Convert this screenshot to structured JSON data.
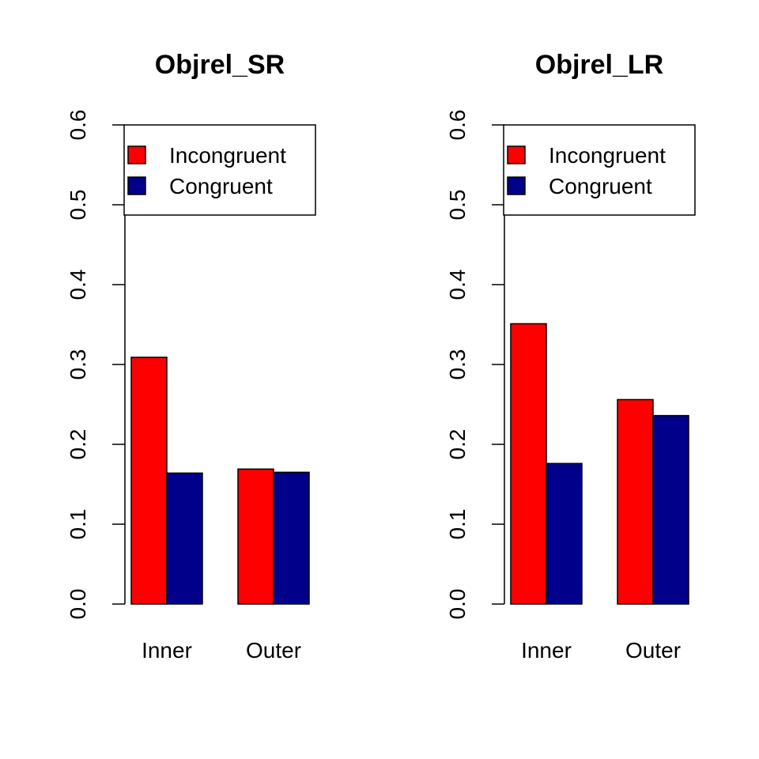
{
  "chart_data": [
    {
      "type": "bar",
      "title": "Objrel_SR",
      "categories": [
        "Inner",
        "Outer"
      ],
      "series": [
        {
          "name": "Incongruent",
          "color": "#ff0000",
          "values": [
            0.309,
            0.169
          ]
        },
        {
          "name": "Congruent",
          "color": "#00008b",
          "values": [
            0.164,
            0.165
          ]
        }
      ],
      "ylim": [
        0,
        0.6
      ],
      "yticks": [
        "0.0",
        "0.1",
        "0.2",
        "0.3",
        "0.4",
        "0.5",
        "0.6"
      ],
      "legend": "top-right",
      "grid": false
    },
    {
      "type": "bar",
      "title": "Objrel_LR",
      "categories": [
        "Inner",
        "Outer"
      ],
      "series": [
        {
          "name": "Incongruent",
          "color": "#ff0000",
          "values": [
            0.351,
            0.256
          ]
        },
        {
          "name": "Congruent",
          "color": "#00008b",
          "values": [
            0.176,
            0.236
          ]
        }
      ],
      "ylim": [
        0,
        0.6
      ],
      "yticks": [
        "0.0",
        "0.1",
        "0.2",
        "0.3",
        "0.4",
        "0.5",
        "0.6"
      ],
      "legend": "top-right",
      "grid": false
    }
  ]
}
